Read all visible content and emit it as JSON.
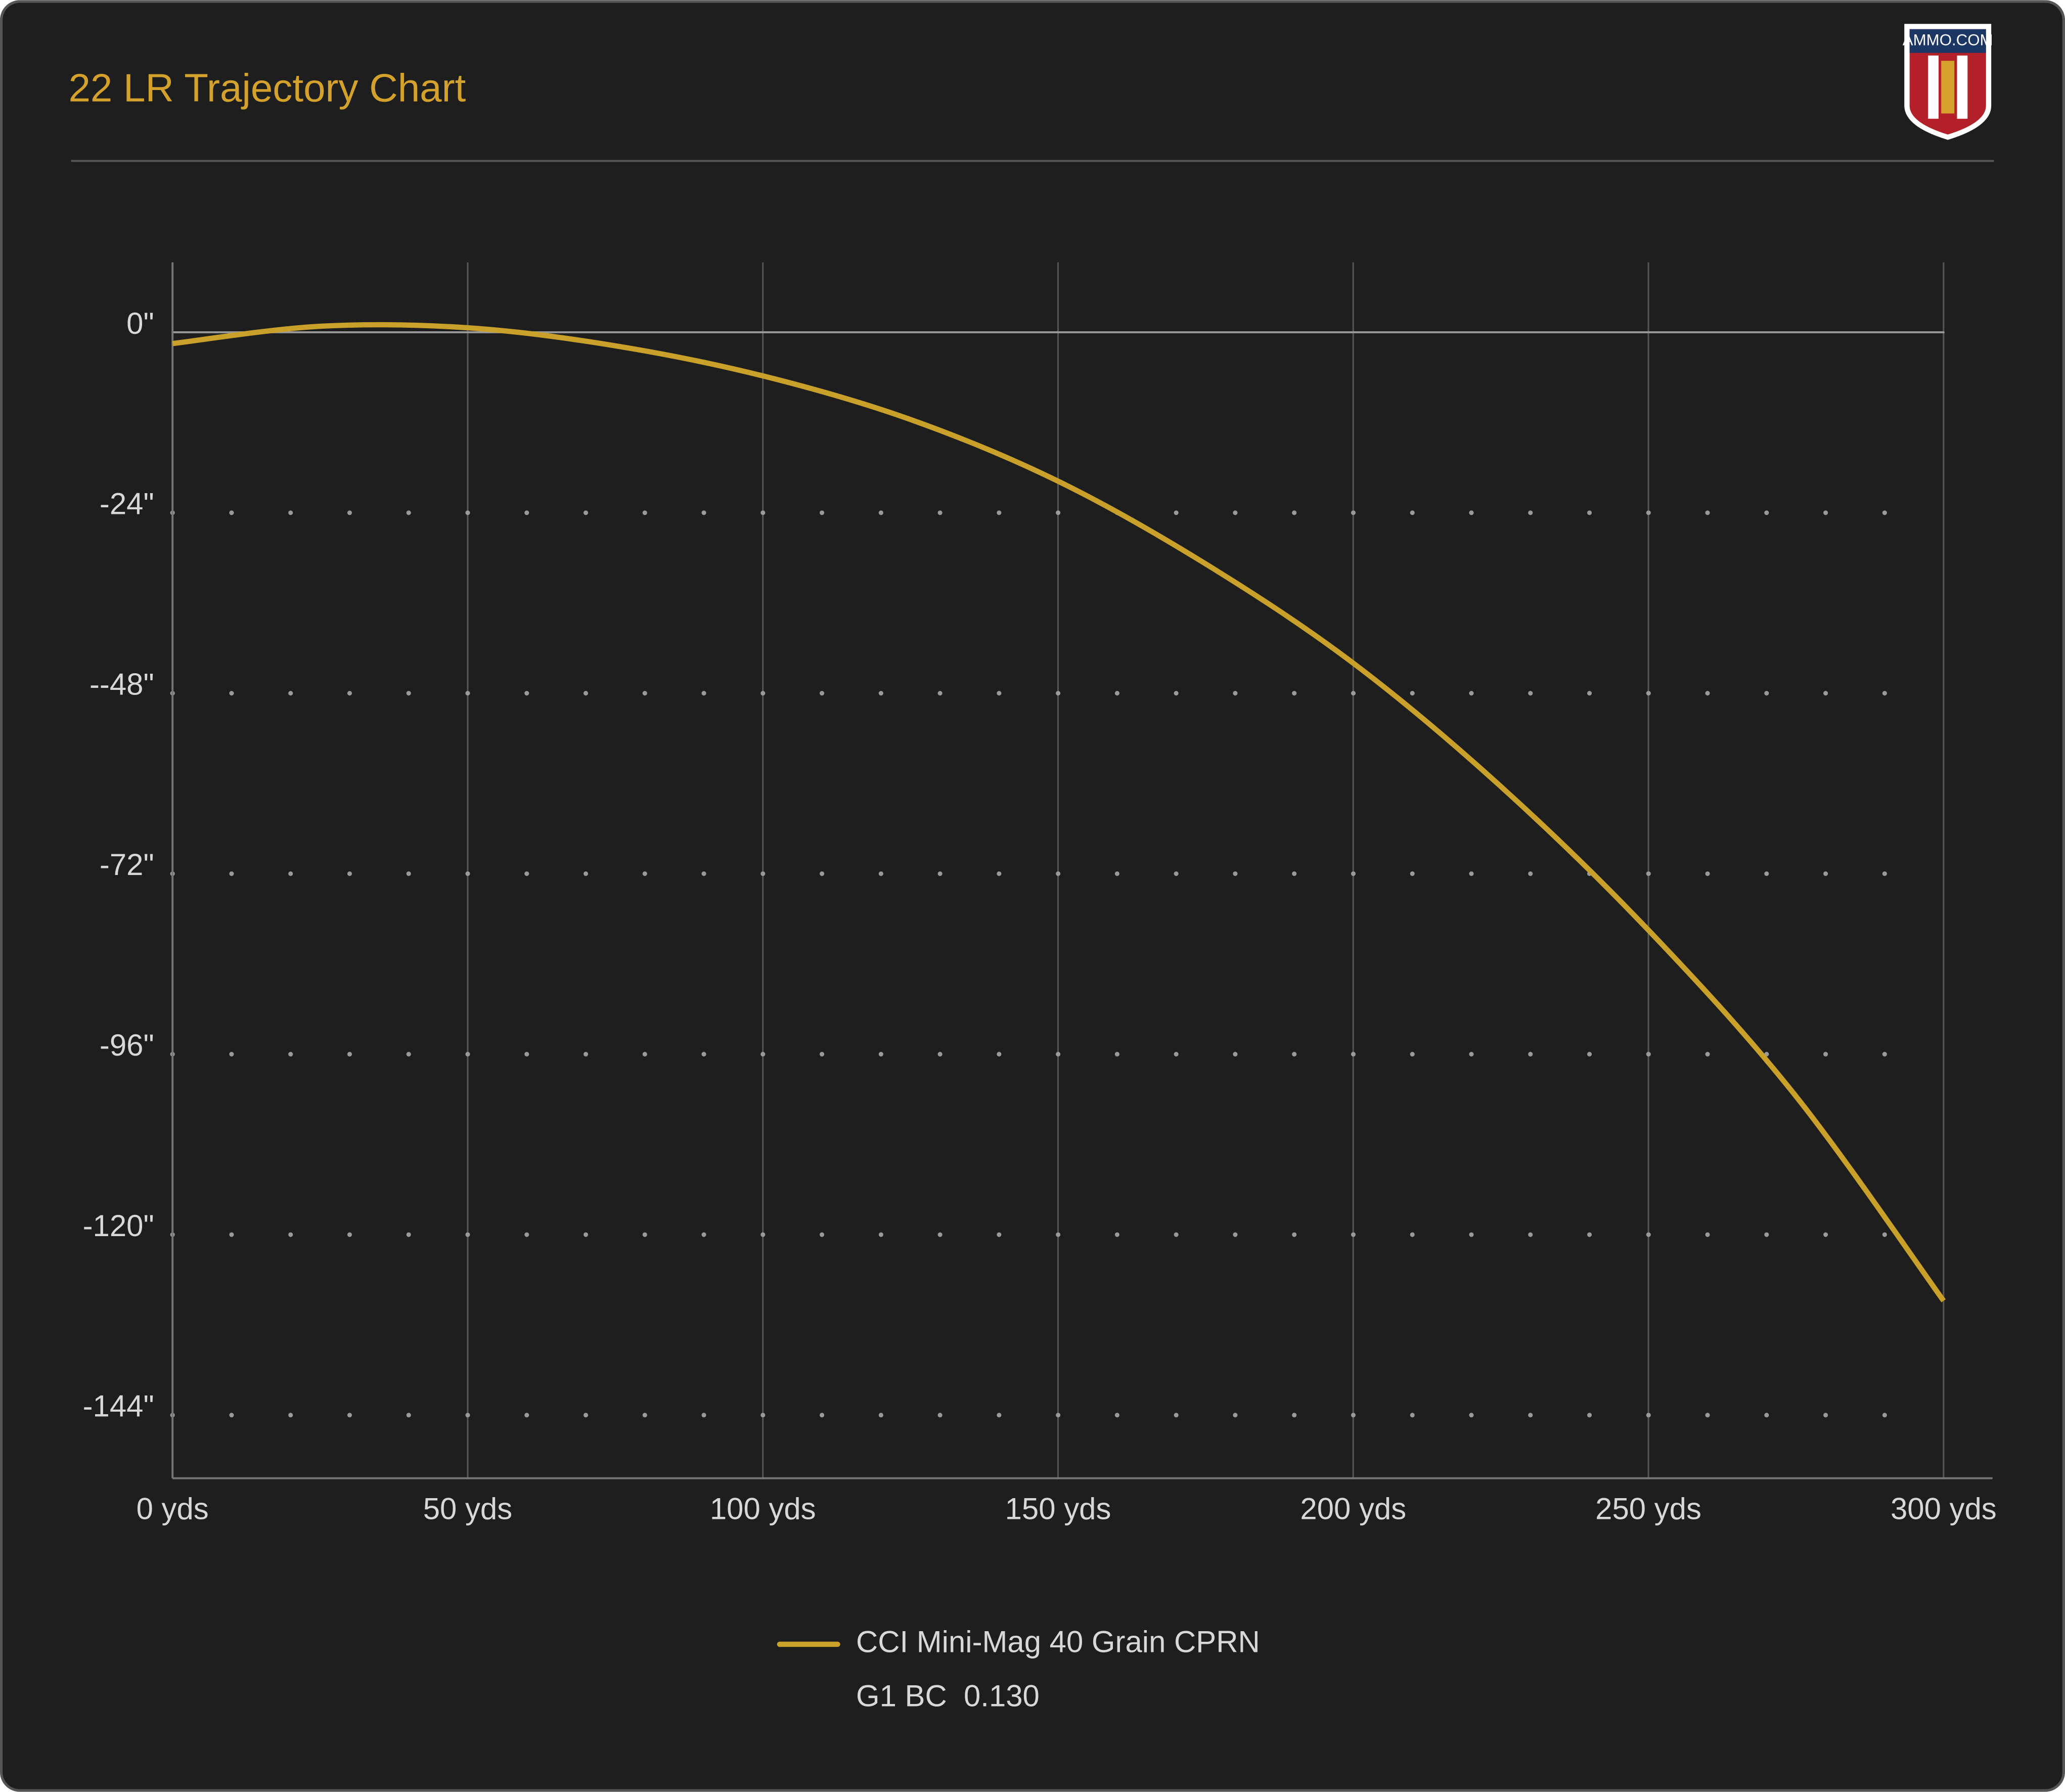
{
  "chart_data": {
    "type": "line",
    "title": "22 LR Trajectory Chart",
    "logo": "AMMO.COM",
    "x": [
      0,
      25,
      50,
      75,
      100,
      125,
      150,
      175,
      200,
      225,
      250,
      275,
      300
    ],
    "series": [
      {
        "name": "CCI Mini-Mag 40 Grain CPRN",
        "detail": "G1 BC  0.130",
        "color": "#c9a12a",
        "values": [
          -1.5,
          0.8,
          0.6,
          -1.8,
          -5.8,
          -11.6,
          -19.8,
          -30.8,
          -44,
          -60.4,
          -79.5,
          -101.6,
          -128.8
        ]
      }
    ],
    "xlim": [
      0,
      308.3
    ],
    "xticks": [
      {
        "value": 0,
        "label": "0 yds"
      },
      {
        "value": 50,
        "label": "50 yds"
      },
      {
        "value": 100,
        "label": "100 yds"
      },
      {
        "value": 150,
        "label": "150 yds"
      },
      {
        "value": 200,
        "label": "200 yds"
      },
      {
        "value": 250,
        "label": "250 yds"
      },
      {
        "value": 300,
        "label": "300 yds"
      }
    ],
    "ylim": [
      -152.4,
      9.3
    ],
    "yticks": [
      {
        "value": 0,
        "label": "0\""
      },
      {
        "value": -24,
        "label": "-24\""
      },
      {
        "value": -48,
        "label": "--48\""
      },
      {
        "value": -72,
        "label": "-72\""
      },
      {
        "value": -96,
        "label": "-96\""
      },
      {
        "value": -120,
        "label": "-120\""
      },
      {
        "value": -144,
        "label": "-144\""
      }
    ],
    "grid": true
  }
}
